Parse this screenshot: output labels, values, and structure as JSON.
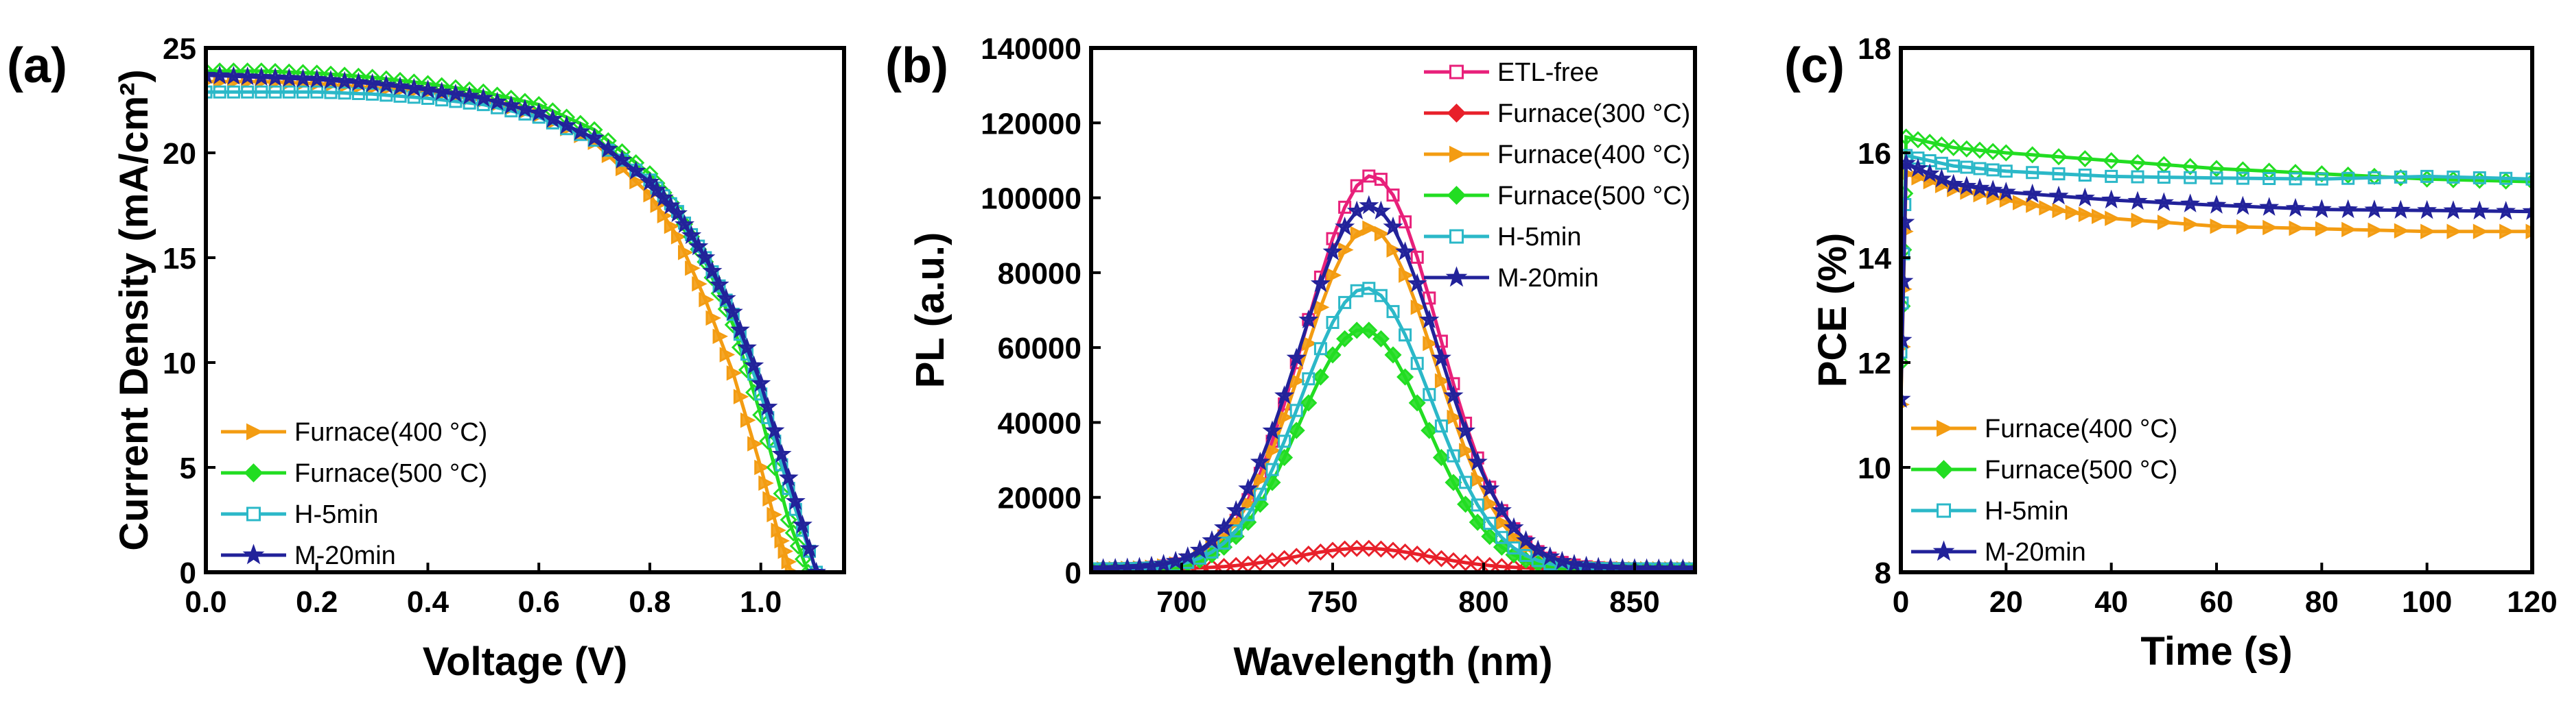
{
  "chart_data": [
    {
      "panel_label": "(a)",
      "type": "line",
      "xlabel": "Voltage (V)",
      "ylabel": "Current Density (mA/cm²)",
      "xlim": [
        0.0,
        1.15
      ],
      "ylim": [
        0,
        25
      ],
      "x_ticks": [
        0.0,
        0.2,
        0.4,
        0.6,
        0.8,
        1.0
      ],
      "x_tick_labels": [
        "0.0",
        "0.2",
        "0.4",
        "0.6",
        "0.8",
        "1.0"
      ],
      "y_ticks": [
        0,
        5,
        10,
        15,
        20,
        25
      ],
      "y_tick_labels": [
        "0",
        "5",
        "10",
        "15",
        "20",
        "25"
      ],
      "legend_position": "bottom-left",
      "series": [
        {
          "name": "Furnace(400 °C)",
          "color": "#f39c12",
          "marker": "triangle-right",
          "points": [
            [
              0.0,
              23.4
            ],
            [
              0.1,
              23.4
            ],
            [
              0.2,
              23.3
            ],
            [
              0.3,
              23.1
            ],
            [
              0.4,
              22.9
            ],
            [
              0.5,
              22.5
            ],
            [
              0.6,
              21.8
            ],
            [
              0.7,
              20.5
            ],
            [
              0.8,
              18.0
            ],
            [
              0.85,
              16.0
            ],
            [
              0.9,
              13.0
            ],
            [
              0.95,
              9.5
            ],
            [
              1.0,
              5.0
            ],
            [
              1.03,
              2.0
            ],
            [
              1.055,
              0.0
            ]
          ]
        },
        {
          "name": "Furnace(500 °C)",
          "color": "#22dd22",
          "marker": "diamond",
          "points": [
            [
              0.0,
              23.9
            ],
            [
              0.1,
              23.9
            ],
            [
              0.2,
              23.8
            ],
            [
              0.3,
              23.6
            ],
            [
              0.4,
              23.3
            ],
            [
              0.5,
              22.9
            ],
            [
              0.6,
              22.3
            ],
            [
              0.7,
              21.1
            ],
            [
              0.8,
              19.0
            ],
            [
              0.85,
              17.2
            ],
            [
              0.9,
              14.8
            ],
            [
              0.95,
              11.8
            ],
            [
              1.0,
              7.5
            ],
            [
              1.05,
              2.5
            ],
            [
              1.085,
              0.0
            ]
          ]
        },
        {
          "name": "H-5min",
          "color": "#2bb8c8",
          "marker": "square",
          "points": [
            [
              0.0,
              22.9
            ],
            [
              0.1,
              22.9
            ],
            [
              0.2,
              22.9
            ],
            [
              0.3,
              22.8
            ],
            [
              0.4,
              22.6
            ],
            [
              0.5,
              22.3
            ],
            [
              0.6,
              21.7
            ],
            [
              0.7,
              20.6
            ],
            [
              0.8,
              18.7
            ],
            [
              0.85,
              17.2
            ],
            [
              0.9,
              15.0
            ],
            [
              0.95,
              12.3
            ],
            [
              1.0,
              8.5
            ],
            [
              1.05,
              4.0
            ],
            [
              1.1,
              0.0
            ]
          ]
        },
        {
          "name": "M-20min",
          "color": "#22229a",
          "marker": "star",
          "points": [
            [
              0.0,
              23.7
            ],
            [
              0.1,
              23.6
            ],
            [
              0.2,
              23.5
            ],
            [
              0.3,
              23.3
            ],
            [
              0.4,
              23.0
            ],
            [
              0.5,
              22.6
            ],
            [
              0.6,
              21.9
            ],
            [
              0.7,
              20.7
            ],
            [
              0.8,
              18.6
            ],
            [
              0.85,
              17.1
            ],
            [
              0.9,
              15.0
            ],
            [
              0.95,
              12.4
            ],
            [
              1.0,
              9.0
            ],
            [
              1.05,
              4.5
            ],
            [
              1.1,
              0.0
            ]
          ]
        }
      ]
    },
    {
      "panel_label": "(b)",
      "type": "line",
      "xlabel": "Wavelength (nm)",
      "ylabel": "PL (a.u.)",
      "xlim": [
        670,
        870
      ],
      "ylim": [
        0,
        140000
      ],
      "x_ticks": [
        700,
        750,
        800,
        850
      ],
      "x_tick_labels": [
        "700",
        "750",
        "800",
        "850"
      ],
      "y_ticks": [
        0,
        20000,
        40000,
        60000,
        80000,
        100000,
        120000,
        140000
      ],
      "y_tick_labels": [
        "0",
        "20000",
        "40000",
        "60000",
        "80000",
        "100000",
        "120000",
        "140000"
      ],
      "legend_position": "top-right",
      "series": [
        {
          "name": "ETL-free",
          "color": "#e8207a",
          "marker": "square",
          "peak_x": 763,
          "peak_y": 105000,
          "width": 22
        },
        {
          "name": "Furnace(300 °C)",
          "color": "#e8202a",
          "marker": "diamond",
          "peak_x": 760,
          "peak_y": 5500,
          "width": 22
        },
        {
          "name": "Furnace(400 °C)",
          "color": "#f39c12",
          "marker": "triangle-right",
          "peak_x": 762,
          "peak_y": 91000,
          "width": 22
        },
        {
          "name": "Furnace(500 °C)",
          "color": "#22dd22",
          "marker": "diamond",
          "peak_x": 760,
          "peak_y": 64000,
          "width": 21
        },
        {
          "name": "H-5min",
          "color": "#2bb8c8",
          "marker": "square",
          "peak_x": 761,
          "peak_y": 75000,
          "width": 21.5
        },
        {
          "name": "M-20min",
          "color": "#22229a",
          "marker": "star",
          "peak_x": 762,
          "peak_y": 97000,
          "width": 23
        }
      ]
    },
    {
      "panel_label": "(c)",
      "type": "line",
      "xlabel": "Time (s)",
      "ylabel": "PCE (%)",
      "xlim": [
        0,
        120
      ],
      "ylim": [
        8,
        18
      ],
      "x_ticks": [
        0,
        20,
        40,
        60,
        80,
        100,
        120
      ],
      "x_tick_labels": [
        "0",
        "20",
        "40",
        "60",
        "80",
        "100",
        "120"
      ],
      "y_ticks": [
        8,
        10,
        12,
        14,
        16,
        18
      ],
      "y_tick_labels": [
        "8",
        "10",
        "12",
        "14",
        "16",
        "18"
      ],
      "legend_position": "bottom-left",
      "series": [
        {
          "name": "Furnace(400 °C)",
          "color": "#f39c12",
          "marker": "triangle-right",
          "points": [
            [
              0,
              11.2
            ],
            [
              1,
              15.6
            ],
            [
              10,
              15.3
            ],
            [
              20,
              15.1
            ],
            [
              30,
              14.9
            ],
            [
              40,
              14.75
            ],
            [
              60,
              14.6
            ],
            [
              80,
              14.55
            ],
            [
              100,
              14.5
            ],
            [
              120,
              14.5
            ]
          ]
        },
        {
          "name": "Furnace(500 °C)",
          "color": "#22dd22",
          "marker": "diamond",
          "points": [
            [
              0,
              12.0
            ],
            [
              1,
              16.3
            ],
            [
              10,
              16.1
            ],
            [
              20,
              16.0
            ],
            [
              40,
              15.85
            ],
            [
              60,
              15.7
            ],
            [
              80,
              15.6
            ],
            [
              100,
              15.5
            ],
            [
              120,
              15.45
            ]
          ]
        },
        {
          "name": "H-5min",
          "color": "#2bb8c8",
          "marker": "square",
          "points": [
            [
              0,
              12.2
            ],
            [
              1,
              15.95
            ],
            [
              10,
              15.75
            ],
            [
              20,
              15.65
            ],
            [
              40,
              15.55
            ],
            [
              60,
              15.52
            ],
            [
              80,
              15.5
            ],
            [
              100,
              15.55
            ],
            [
              120,
              15.5
            ]
          ]
        },
        {
          "name": "M-20min",
          "color": "#22229a",
          "marker": "star",
          "points": [
            [
              0,
              11.3
            ],
            [
              1,
              15.8
            ],
            [
              10,
              15.4
            ],
            [
              20,
              15.25
            ],
            [
              40,
              15.1
            ],
            [
              60,
              15.0
            ],
            [
              80,
              14.92
            ],
            [
              100,
              14.9
            ],
            [
              120,
              14.88
            ]
          ]
        }
      ]
    }
  ]
}
